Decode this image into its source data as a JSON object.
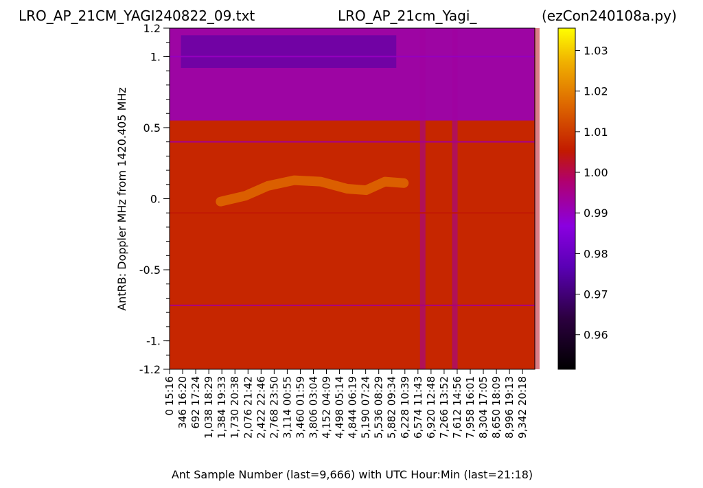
{
  "titles": {
    "left": "LRO_AP_21CM_YAGI240822_09.txt",
    "center": "LRO_AP_21cm_Yagi_",
    "right": "(ezCon240108a.py)"
  },
  "chart_data": {
    "type": "heatmap",
    "xlabel": "Ant Sample Number (last=9,666) with UTC Hour:Min (last=21:18)",
    "ylabel": "AntRB:  Doppler MHz from 1420.405 MHz",
    "x_range": [
      0,
      9666
    ],
    "y_range": [
      -1.2,
      1.2
    ],
    "x_ticks": [
      {
        "sample": 0,
        "label": "0  15:16"
      },
      {
        "sample": 346,
        "label": "346  16:20"
      },
      {
        "sample": 692,
        "label": "692  17:24"
      },
      {
        "sample": 1038,
        "label": "1,038  18:29"
      },
      {
        "sample": 1384,
        "label": "1,384  19:33"
      },
      {
        "sample": 1730,
        "label": "1,730  20:38"
      },
      {
        "sample": 2076,
        "label": "2,076  21:42"
      },
      {
        "sample": 2422,
        "label": "2,422  22:46"
      },
      {
        "sample": 2768,
        "label": "2,768  23:50"
      },
      {
        "sample": 3114,
        "label": "3,114  00:55"
      },
      {
        "sample": 3460,
        "label": "3,460  01:59"
      },
      {
        "sample": 3806,
        "label": "3,806  03:04"
      },
      {
        "sample": 4152,
        "label": "4,152  04:09"
      },
      {
        "sample": 4498,
        "label": "4,498  05:14"
      },
      {
        "sample": 4844,
        "label": "4,844  06:19"
      },
      {
        "sample": 5190,
        "label": "5,190  07:24"
      },
      {
        "sample": 5536,
        "label": "5,536  08:29"
      },
      {
        "sample": 5882,
        "label": "5,882  09:34"
      },
      {
        "sample": 6228,
        "label": "6,228  10:39"
      },
      {
        "sample": 6574,
        "label": "6,574  11:43"
      },
      {
        "sample": 6920,
        "label": "6,920  12:48"
      },
      {
        "sample": 7266,
        "label": "7,266  13:52"
      },
      {
        "sample": 7612,
        "label": "7,612  14:56"
      },
      {
        "sample": 7958,
        "label": "7,958  16:01"
      },
      {
        "sample": 8304,
        "label": "8,304  17:05"
      },
      {
        "sample": 8650,
        "label": "8,650  18:09"
      },
      {
        "sample": 8996,
        "label": "8,996  19:13"
      },
      {
        "sample": 9342,
        "label": "9,342  20:18"
      }
    ],
    "y_ticks": [
      {
        "value": 1.2,
        "label": "1.2"
      },
      {
        "value": 1.0,
        "label": "1."
      },
      {
        "value": 0.5,
        "label": "0.5"
      },
      {
        "value": 0.0,
        "label": "0."
      },
      {
        "value": -0.5,
        "label": "-0.5"
      },
      {
        "value": -1.0,
        "label": "-1."
      },
      {
        "value": -1.2,
        "label": "-1.2"
      }
    ],
    "y_minor_step": 0.1,
    "colorbar": {
      "colormap": "gnuplot",
      "range": [
        0.9515,
        1.0355
      ],
      "ticks": [
        {
          "value": 1.03,
          "label": "1.03"
        },
        {
          "value": 1.02,
          "label": "1.02"
        },
        {
          "value": 1.01,
          "label": "1.01"
        },
        {
          "value": 1.0,
          "label": "1.00"
        },
        {
          "value": 0.99,
          "label": "0.99"
        },
        {
          "value": 0.98,
          "label": "0.98"
        },
        {
          "value": 0.97,
          "label": "0.97"
        },
        {
          "value": 0.96,
          "label": "0.96"
        }
      ]
    },
    "features": {
      "baseline_value": 1.007,
      "hydrogen_arc_peak_value": 1.017,
      "hydrogen_arc_points": [
        {
          "sample": 1350,
          "doppler": -0.02
        },
        {
          "sample": 2000,
          "doppler": 0.02
        },
        {
          "sample": 2600,
          "doppler": 0.09
        },
        {
          "sample": 3300,
          "doppler": 0.13
        },
        {
          "sample": 4000,
          "doppler": 0.12
        },
        {
          "sample": 4700,
          "doppler": 0.07
        },
        {
          "sample": 5200,
          "doppler": 0.06
        },
        {
          "sample": 5700,
          "doppler": 0.12
        },
        {
          "sample": 6200,
          "doppler": 0.11
        }
      ],
      "upper_band_value": 0.99,
      "upper_band_min_value": 0.975,
      "upper_band_doppler_from": 0.55,
      "horizontal_lines": [
        {
          "doppler": 0.4,
          "value": 0.995
        },
        {
          "doppler": 1.0,
          "value": 0.99
        },
        {
          "doppler": -0.75,
          "value": 0.996
        },
        {
          "doppler": -0.1,
          "value": 1.005
        }
      ],
      "vertical_streaks": [
        {
          "sample": 6700,
          "value": 0.993
        },
        {
          "sample": 7550,
          "value": 0.993
        },
        {
          "sample": 9720,
          "value": 1.003
        }
      ]
    }
  }
}
